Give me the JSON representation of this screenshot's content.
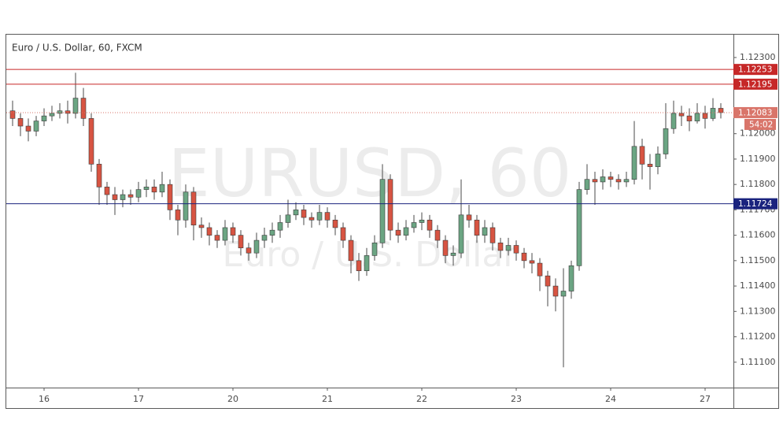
{
  "chart_data": {
    "type": "candlestick",
    "title": "Euro / U.S. Dollar, 60, FXCM",
    "watermark": "EURUSD, 60",
    "watermark_subtitle": "Euro / U.S. Dollar",
    "categories": [
      null,
      null,
      null,
      null,
      "16",
      null,
      null,
      null,
      null,
      null,
      null,
      null,
      null,
      null,
      null,
      null,
      "17",
      null,
      null,
      null,
      null,
      null,
      null,
      null,
      null,
      null,
      null,
      null,
      "20",
      null,
      null,
      null,
      null,
      null,
      null,
      null,
      null,
      null,
      null,
      null,
      "21",
      null,
      null,
      null,
      null,
      null,
      null,
      null,
      null,
      null,
      null,
      null,
      "22",
      null,
      null,
      null,
      null,
      null,
      null,
      null,
      null,
      null,
      null,
      null,
      "23",
      null,
      null,
      null,
      null,
      null,
      null,
      null,
      null,
      null,
      null,
      null,
      "24",
      null,
      null,
      null,
      null,
      null,
      null,
      null,
      null,
      null,
      null,
      null,
      "27",
      null,
      null
    ],
    "open": [
      1.1209,
      1.1206,
      1.1203,
      1.1201,
      1.1205,
      1.1207,
      1.1208,
      1.1209,
      1.1208,
      1.1214,
      1.1206,
      1.1188,
      1.1179,
      1.1176,
      1.1174,
      1.1176,
      1.1175,
      1.1178,
      1.1179,
      1.1177,
      1.118,
      1.117,
      1.1166,
      1.1177,
      1.1164,
      1.1163,
      1.116,
      1.1158,
      1.1163,
      1.116,
      1.1155,
      1.1153,
      1.1158,
      1.116,
      1.1162,
      1.1165,
      1.1168,
      1.117,
      1.1167,
      1.1166,
      1.1169,
      1.1166,
      1.1163,
      1.1158,
      1.115,
      1.1146,
      1.1152,
      1.1157,
      1.1182,
      1.1162,
      1.116,
      1.1163,
      1.1165,
      1.1166,
      1.1162,
      1.1158,
      1.1152,
      1.1153,
      1.1168,
      1.1166,
      1.116,
      1.1163,
      1.1157,
      1.1154,
      1.1156,
      1.1153,
      1.115,
      1.1149,
      1.1144,
      1.114,
      1.1136,
      1.1138,
      1.1148,
      1.1178,
      1.1182,
      1.1181,
      1.1183,
      1.1182,
      1.1181,
      1.1182,
      1.1195,
      1.1188,
      1.1187,
      1.1192,
      1.1202,
      1.1208,
      1.1207,
      1.1205,
      1.1208,
      1.1206,
      1.121
    ],
    "high": [
      1.1213,
      1.1208,
      1.1206,
      1.1207,
      1.121,
      1.1211,
      1.1212,
      1.1213,
      1.1224,
      1.1218,
      1.1208,
      1.119,
      1.1181,
      1.1179,
      1.1178,
      1.1178,
      1.1181,
      1.1182,
      1.1182,
      1.1185,
      1.1182,
      1.1172,
      1.118,
      1.1179,
      1.1167,
      1.1165,
      1.1162,
      1.1166,
      1.1165,
      1.1162,
      1.1157,
      1.1161,
      1.1163,
      1.1165,
      1.1168,
      1.1174,
      1.1173,
      1.1172,
      1.1169,
      1.1172,
      1.1171,
      1.1168,
      1.1165,
      1.116,
      1.1153,
      1.1155,
      1.116,
      1.1188,
      1.1184,
      1.1165,
      1.1166,
      1.1168,
      1.1169,
      1.1168,
      1.1164,
      1.116,
      1.1156,
      1.1182,
      1.1172,
      1.1168,
      1.1166,
      1.1165,
      1.1159,
      1.1159,
      1.1158,
      1.1155,
      1.1153,
      1.1151,
      1.1146,
      1.1143,
      1.1147,
      1.115,
      1.1181,
      1.1188,
      1.1185,
      1.1186,
      1.1185,
      1.1184,
      1.1185,
      1.1205,
      1.1198,
      1.1192,
      1.1195,
      1.1212,
      1.1213,
      1.1211,
      1.121,
      1.1212,
      1.1211,
      1.1214,
      1.1212
    ],
    "low": [
      1.1203,
      1.1199,
      1.1197,
      1.1199,
      1.1203,
      1.1205,
      1.1206,
      1.1204,
      1.1206,
      1.1203,
      1.1185,
      1.1172,
      1.1172,
      1.1168,
      1.1171,
      1.1172,
      1.1173,
      1.1175,
      1.1174,
      1.1175,
      1.1166,
      1.116,
      1.1163,
      1.1158,
      1.1159,
      1.1156,
      1.1155,
      1.1156,
      1.1157,
      1.1152,
      1.115,
      1.1151,
      1.1155,
      1.1157,
      1.1159,
      1.1163,
      1.1166,
      1.1164,
      1.1163,
      1.1164,
      1.1163,
      1.116,
      1.1155,
      1.1145,
      1.1142,
      1.1144,
      1.115,
      1.1155,
      1.1158,
      1.1157,
      1.1158,
      1.1161,
      1.1162,
      1.1159,
      1.1155,
      1.1149,
      1.1148,
      1.1151,
      1.1163,
      1.1157,
      1.1157,
      1.1154,
      1.1151,
      1.1152,
      1.115,
      1.1147,
      1.1145,
      1.1138,
      1.1132,
      1.113,
      1.1108,
      1.1135,
      1.1146,
      1.1176,
      1.1172,
      1.1178,
      1.1179,
      1.1178,
      1.1179,
      1.118,
      1.1182,
      1.1178,
      1.1184,
      1.119,
      1.12,
      1.1203,
      1.1201,
      1.1204,
      1.1202,
      1.1205,
      1.1206
    ],
    "close": [
      1.1206,
      1.1203,
      1.1201,
      1.1205,
      1.1207,
      1.1208,
      1.1209,
      1.1208,
      1.1214,
      1.1206,
      1.1188,
      1.1179,
      1.1176,
      1.1174,
      1.1176,
      1.1175,
      1.1178,
      1.1179,
      1.1177,
      1.118,
      1.117,
      1.1166,
      1.1177,
      1.1164,
      1.1163,
      1.116,
      1.1158,
      1.1163,
      1.116,
      1.1155,
      1.1153,
      1.1158,
      1.116,
      1.1162,
      1.1165,
      1.1168,
      1.117,
      1.1167,
      1.1166,
      1.1169,
      1.1166,
      1.1163,
      1.1158,
      1.115,
      1.1146,
      1.1152,
      1.1157,
      1.1182,
      1.1162,
      1.116,
      1.1163,
      1.1165,
      1.1166,
      1.1162,
      1.1158,
      1.1152,
      1.1153,
      1.1168,
      1.1166,
      1.116,
      1.1163,
      1.1157,
      1.1154,
      1.1156,
      1.1153,
      1.115,
      1.1149,
      1.1144,
      1.114,
      1.1136,
      1.1138,
      1.1148,
      1.1178,
      1.1182,
      1.1181,
      1.1183,
      1.1182,
      1.1181,
      1.1182,
      1.1195,
      1.1188,
      1.1187,
      1.1192,
      1.1202,
      1.1208,
      1.1207,
      1.1205,
      1.1208,
      1.1206,
      1.121,
      1.12083
    ],
    "up_color": "#6ba583",
    "down_color": "#d75442",
    "ylim": [
      1.11,
      1.1239
    ],
    "yticks": [
      {
        "value": 1.123,
        "label": "1.12300"
      },
      {
        "value": 1.12,
        "label": "1.12000"
      },
      {
        "value": 1.119,
        "label": "1.11900"
      },
      {
        "value": 1.118,
        "label": "1.11800"
      },
      {
        "value": 1.117,
        "label": "1.11700"
      },
      {
        "value": 1.116,
        "label": "1.11600"
      },
      {
        "value": 1.115,
        "label": "1.11500"
      },
      {
        "value": 1.114,
        "label": "1.11400"
      },
      {
        "value": 1.113,
        "label": "1.11300"
      },
      {
        "value": 1.112,
        "label": "1.11200"
      },
      {
        "value": 1.111,
        "label": "1.11100"
      }
    ],
    "levels": [
      {
        "value": 1.12253,
        "color": "#c62828"
      },
      {
        "value": 1.12195,
        "color": "#c62828"
      },
      {
        "value": 1.11724,
        "color": "#1a237e"
      }
    ],
    "last_price": {
      "value": 1.12083,
      "countdown": "54:02",
      "color": "#d9756a"
    }
  }
}
